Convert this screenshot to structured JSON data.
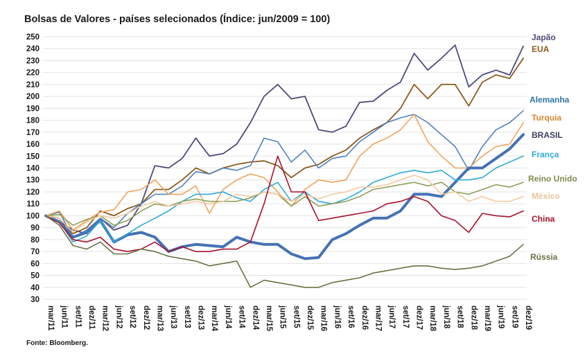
{
  "chart_data": {
    "type": "line",
    "title": "Bolsas de Valores - países selecionados (Índice: jun/2009 = 100)",
    "source": "Fonte: Bloomberg.",
    "xlabel": "",
    "ylabel": "",
    "ylim": [
      30,
      250
    ],
    "yticks": [
      30,
      40,
      50,
      60,
      70,
      80,
      90,
      100,
      110,
      120,
      130,
      140,
      150,
      160,
      170,
      180,
      190,
      200,
      210,
      220,
      230,
      240,
      250
    ],
    "grid": true,
    "legend": "right (direct labels at line ends)",
    "x_tick_labels": [
      "mar/11",
      "jun/11",
      "set/11",
      "dez/11",
      "mar/12",
      "jun/12",
      "set/12",
      "dez/12",
      "mar/13",
      "jun/13",
      "set/13",
      "dez/13",
      "mar/14",
      "jun/14",
      "set/14",
      "dez/14",
      "mar/15",
      "jun/15",
      "set/15",
      "dez/15",
      "mar/16",
      "jun/16",
      "set/16",
      "dez/16",
      "mar/17",
      "jun/17",
      "set/17",
      "dez/17",
      "mar/18",
      "jun/18",
      "set/18",
      "dez/18",
      "mar/19",
      "jun/19",
      "set/19",
      "dez/19"
    ],
    "x_note": "quarterly points from mar/11 to dez/19",
    "series": [
      {
        "name": "Japão",
        "color": "#4d4a78",
        "width": 1.8,
        "values": [
          100,
          95,
          88,
          85,
          98,
          88,
          92,
          110,
          142,
          140,
          148,
          165,
          150,
          152,
          160,
          178,
          200,
          210,
          198,
          200,
          172,
          170,
          175,
          195,
          196,
          205,
          212,
          236,
          222,
          232,
          243,
          208,
          218,
          222,
          218,
          242
        ]
      },
      {
        "name": "EUA",
        "color": "#8b5a1e",
        "width": 1.8,
        "values": [
          100,
          98,
          85,
          90,
          104,
          100,
          106,
          110,
          122,
          122,
          130,
          140,
          135,
          140,
          143,
          145,
          146,
          142,
          132,
          140,
          143,
          150,
          155,
          165,
          172,
          178,
          190,
          210,
          198,
          210,
          210,
          192,
          212,
          218,
          215,
          232
        ]
      },
      {
        "name": "Alemanha",
        "color": "#4f81bd",
        "width": 1.6,
        "values": [
          100,
          103,
          82,
          88,
          98,
          90,
          102,
          110,
          118,
          118,
          125,
          137,
          135,
          140,
          138,
          142,
          165,
          162,
          145,
          155,
          140,
          148,
          150,
          162,
          170,
          178,
          182,
          185,
          178,
          168,
          158,
          138,
          158,
          172,
          178,
          188
        ]
      },
      {
        "name": "Turquia",
        "color": "#f0a35a",
        "width": 1.6,
        "values": [
          100,
          104,
          88,
          96,
          103,
          105,
          120,
          122,
          130,
          118,
          118,
          125,
          102,
          122,
          130,
          135,
          132,
          120,
          108,
          122,
          130,
          128,
          130,
          150,
          160,
          165,
          172,
          185,
          162,
          150,
          140,
          140,
          150,
          158,
          160,
          178
        ]
      },
      {
        "name": "BRASIL",
        "color": "#4472b4",
        "width": 4,
        "values": [
          100,
          95,
          82,
          86,
          96,
          78,
          84,
          86,
          82,
          70,
          74,
          76,
          75,
          74,
          82,
          78,
          76,
          76,
          68,
          64,
          65,
          80,
          85,
          92,
          98,
          98,
          104,
          118,
          118,
          116,
          128,
          140,
          140,
          148,
          156,
          168
        ]
      },
      {
        "name": "França",
        "color": "#2eaad4",
        "width": 1.6,
        "values": [
          100,
          95,
          78,
          83,
          96,
          78,
          85,
          92,
          98,
          104,
          112,
          118,
          118,
          120,
          115,
          112,
          122,
          128,
          112,
          120,
          112,
          110,
          114,
          120,
          128,
          132,
          136,
          138,
          136,
          138,
          130,
          130,
          132,
          140,
          145,
          150
        ]
      },
      {
        "name": "Reino Unido",
        "color": "#8ea05a",
        "width": 1.6,
        "values": [
          100,
          101,
          92,
          97,
          100,
          92,
          96,
          104,
          110,
          108,
          112,
          114,
          112,
          112,
          112,
          115,
          120,
          118,
          108,
          116,
          108,
          110,
          112,
          116,
          122,
          124,
          126,
          128,
          125,
          128,
          120,
          118,
          122,
          126,
          124,
          128
        ]
      },
      {
        "name": "México",
        "color": "#f2c9a0",
        "width": 1.6,
        "values": [
          100,
          98,
          86,
          95,
          100,
          98,
          102,
          108,
          112,
          108,
          110,
          112,
          110,
          112,
          118,
          116,
          120,
          118,
          112,
          118,
          114,
          118,
          120,
          124,
          124,
          126,
          130,
          134,
          130,
          118,
          120,
          112,
          116,
          112,
          112,
          116
        ]
      },
      {
        "name": "China",
        "color": "#a8112c",
        "width": 1.6,
        "values": [
          100,
          94,
          80,
          78,
          82,
          72,
          70,
          72,
          78,
          70,
          74,
          70,
          70,
          72,
          72,
          78,
          110,
          150,
          120,
          120,
          96,
          98,
          100,
          102,
          104,
          110,
          112,
          116,
          112,
          100,
          96,
          86,
          102,
          100,
          99,
          104
        ]
      },
      {
        "name": "Rússia",
        "color": "#6b7046",
        "width": 1.6,
        "values": [
          100,
          92,
          75,
          72,
          78,
          68,
          68,
          72,
          70,
          66,
          64,
          62,
          58,
          60,
          62,
          40,
          46,
          44,
          42,
          40,
          40,
          44,
          46,
          48,
          52,
          54,
          56,
          58,
          58,
          56,
          55,
          56,
          58,
          62,
          66,
          76
        ]
      }
    ]
  }
}
